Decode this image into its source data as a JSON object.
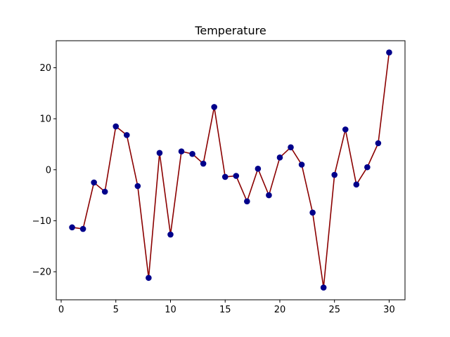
{
  "chart_data": {
    "type": "line",
    "title": "Temperature",
    "xlabel": "",
    "ylabel": "",
    "xlim": [
      -0.45,
      31.45
    ],
    "ylim": [
      -25.5,
      25.3
    ],
    "xticks": [
      0,
      5,
      10,
      15,
      20,
      25,
      30
    ],
    "yticks": [
      -20,
      -10,
      0,
      10,
      20
    ],
    "xtick_labels": [
      "0",
      "5",
      "10",
      "15",
      "20",
      "25",
      "30"
    ],
    "ytick_labels": [
      "−20",
      "−10",
      "0",
      "10",
      "20"
    ],
    "grid": false,
    "series": [
      {
        "line_color": "#8b0000",
        "marker_color": "#00008b",
        "x": [
          1,
          2,
          3,
          4,
          5,
          6,
          7,
          8,
          9,
          10,
          11,
          12,
          13,
          14,
          15,
          16,
          17,
          18,
          19,
          20,
          21,
          22,
          23,
          24,
          25,
          26,
          27,
          28,
          29,
          30
        ],
        "y": [
          -11.3,
          -11.6,
          -2.5,
          -4.3,
          8.5,
          6.8,
          -3.2,
          -21.2,
          3.3,
          -12.7,
          3.6,
          3.1,
          1.2,
          12.3,
          -1.4,
          -1.2,
          -6.2,
          0.2,
          -5.0,
          2.4,
          4.4,
          1.0,
          -8.4,
          -23.1,
          -1.0,
          7.9,
          -2.9,
          0.5,
          5.2,
          23.0
        ]
      }
    ]
  }
}
